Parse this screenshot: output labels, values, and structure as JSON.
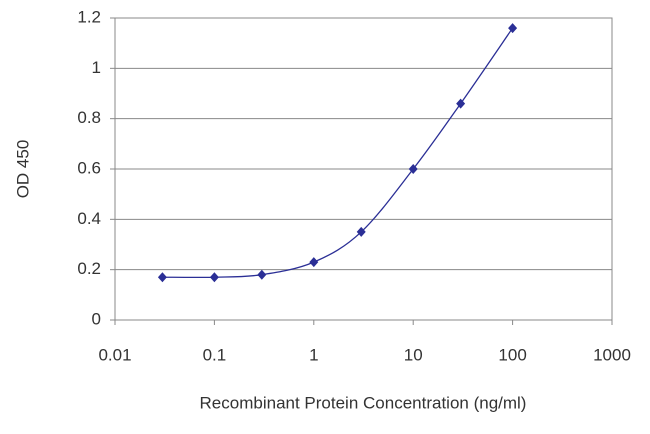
{
  "chart_data": {
    "type": "line",
    "xlabel": "Recombinant Protein Concentration (ng/ml)",
    "ylabel": "OD 450",
    "x": [
      0.03,
      0.1,
      0.3,
      1,
      3,
      10,
      30,
      100
    ],
    "series": [
      {
        "color": "#2b2f96",
        "values": [
          0.17,
          0.17,
          0.18,
          0.23,
          0.35,
          0.6,
          0.86,
          1.16
        ]
      }
    ],
    "xlim": [
      0.01,
      1000
    ],
    "xticks": [
      0.01,
      0.1,
      1,
      10,
      100,
      1000
    ],
    "xscale": "log",
    "ylim": [
      0,
      1.2
    ],
    "yticks": [
      0,
      0.2,
      0.4,
      0.6,
      0.8,
      1,
      1.2
    ],
    "grid": true
  }
}
